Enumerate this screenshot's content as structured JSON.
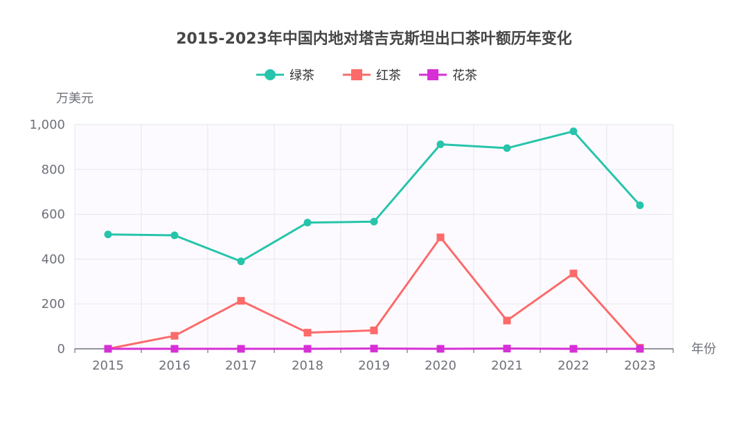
{
  "chart_data": {
    "type": "line",
    "title": "2015-2023年中国内地对塔吉克斯坦出口茶叶额历年变化",
    "ylabel": "万美元",
    "xlabel": "年份",
    "categories": [
      "2015",
      "2016",
      "2017",
      "2018",
      "2019",
      "2020",
      "2021",
      "2022",
      "2023"
    ],
    "ylim": [
      0,
      1000
    ],
    "y_ticks": [
      0,
      200,
      400,
      600,
      800,
      1000
    ],
    "y_tick_labels": [
      "0",
      "200",
      "400",
      "600",
      "800",
      "1,000"
    ],
    "grid": true,
    "legend_position": "top-center",
    "series": [
      {
        "name": "绿茶",
        "color": "#26c4ab",
        "marker": "circle",
        "values": [
          510,
          506,
          390,
          563,
          567,
          912,
          895,
          970,
          640
        ]
      },
      {
        "name": "红茶",
        "color": "#fc6a6a",
        "marker": "square",
        "values": [
          0,
          58,
          214,
          72,
          82,
          497,
          126,
          336,
          5
        ]
      },
      {
        "name": "花茶",
        "color": "#d62fd6",
        "marker": "square",
        "values": [
          0,
          0,
          0,
          0,
          1,
          0,
          1,
          0,
          0
        ]
      }
    ]
  }
}
